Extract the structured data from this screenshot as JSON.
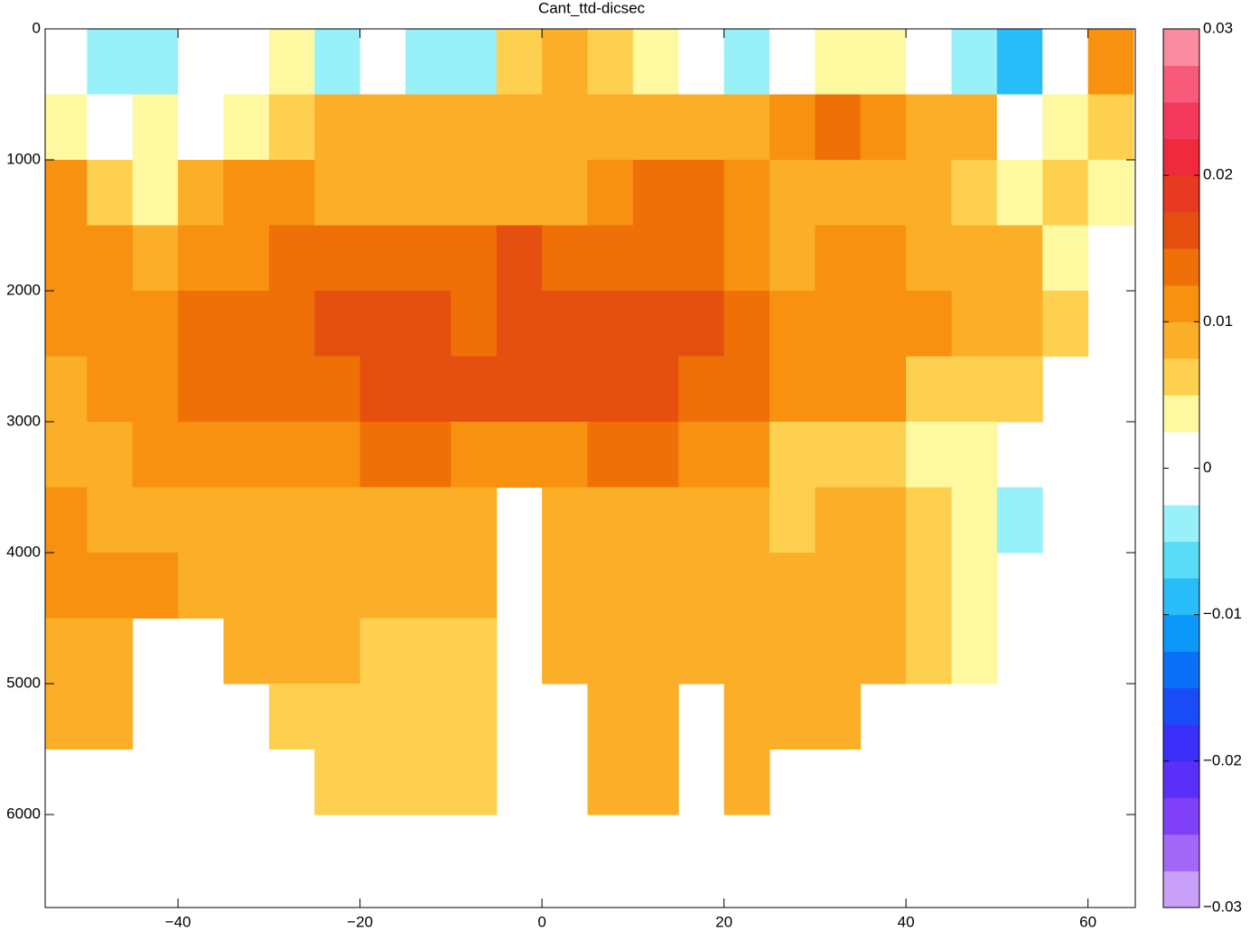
{
  "chart_data": {
    "type": "heatmap",
    "title": "Cant_ttd-dicsec",
    "x_edges": [
      -55,
      -50,
      -45,
      -40,
      -35,
      -30,
      -25,
      -20,
      -15,
      -10,
      -5,
      0,
      5,
      10,
      15,
      20,
      25,
      30,
      35,
      40,
      45,
      50,
      55,
      60,
      65
    ],
    "y_edges": [
      0,
      500,
      1000,
      1500,
      2000,
      2500,
      3000,
      3500,
      4000,
      4500,
      5000,
      5500,
      6000,
      6500
    ],
    "values": [
      [
        0.001,
        -0.004,
        -0.004,
        0.001,
        0.001,
        0.004,
        -0.004,
        0.001,
        -0.004,
        -0.004,
        0.006,
        0.0085,
        0.006,
        0.004,
        0.001,
        -0.004,
        0.001,
        0.004,
        0.004,
        0.001,
        -0.004,
        -0.009,
        0.001,
        0.011
      ],
      [
        0.004,
        0.001,
        0.004,
        0.001,
        0.004,
        0.006,
        0.0085,
        0.0085,
        0.0085,
        0.0085,
        0.0085,
        0.0085,
        0.0085,
        0.0085,
        0.0085,
        0.0085,
        0.011,
        0.0135,
        0.011,
        0.0085,
        0.0085,
        0.001,
        0.004,
        0.006
      ],
      [
        0.011,
        0.006,
        0.004,
        0.0085,
        0.011,
        0.011,
        0.0085,
        0.0085,
        0.0085,
        0.0085,
        0.0085,
        0.0085,
        0.011,
        0.0135,
        0.0135,
        0.011,
        0.0085,
        0.0085,
        0.0085,
        0.0085,
        0.006,
        0.004,
        0.006,
        0.004
      ],
      [
        0.011,
        0.011,
        0.0085,
        0.011,
        0.011,
        0.0135,
        0.0135,
        0.0135,
        0.0135,
        0.0135,
        0.016,
        0.0135,
        0.0135,
        0.0135,
        0.0135,
        0.011,
        0.0085,
        0.011,
        0.011,
        0.0085,
        0.0085,
        0.0085,
        0.004,
        null
      ],
      [
        0.011,
        0.011,
        0.011,
        0.0135,
        0.0135,
        0.0135,
        0.016,
        0.016,
        0.016,
        0.0135,
        0.016,
        0.016,
        0.016,
        0.016,
        0.016,
        0.0135,
        0.011,
        0.011,
        0.011,
        0.011,
        0.0085,
        0.0085,
        0.006,
        null
      ],
      [
        0.0085,
        0.011,
        0.011,
        0.0135,
        0.0135,
        0.0135,
        0.0135,
        0.016,
        0.016,
        0.016,
        0.016,
        0.016,
        0.016,
        0.016,
        0.0135,
        0.0135,
        0.011,
        0.011,
        0.011,
        0.006,
        0.006,
        0.006,
        null,
        null
      ],
      [
        0.0085,
        0.0085,
        0.011,
        0.011,
        0.011,
        0.011,
        0.011,
        0.0135,
        0.0135,
        0.011,
        0.011,
        0.011,
        0.0135,
        0.0135,
        0.011,
        0.011,
        0.006,
        0.006,
        0.006,
        0.004,
        0.004,
        null,
        null,
        null
      ],
      [
        0.011,
        0.0085,
        0.0085,
        0.0085,
        0.0085,
        0.0085,
        0.0085,
        0.0085,
        0.0085,
        0.0085,
        null,
        0.0085,
        0.0085,
        0.0085,
        0.0085,
        0.0085,
        0.006,
        0.0085,
        0.0085,
        0.006,
        0.004,
        -0.004,
        null,
        null
      ],
      [
        0.011,
        0.011,
        0.011,
        0.0085,
        0.0085,
        0.0085,
        0.0085,
        0.0085,
        0.0085,
        0.0085,
        null,
        0.0085,
        0.0085,
        0.0085,
        0.0085,
        0.0085,
        0.0085,
        0.0085,
        0.0085,
        0.006,
        0.004,
        null,
        null,
        null
      ],
      [
        0.0085,
        0.0085,
        null,
        null,
        0.0085,
        0.0085,
        0.0085,
        0.006,
        0.006,
        0.006,
        null,
        0.0085,
        0.0085,
        0.0085,
        0.0085,
        0.0085,
        0.0085,
        0.0085,
        0.0085,
        0.006,
        0.004,
        null,
        null,
        null
      ],
      [
        0.0085,
        0.0085,
        null,
        null,
        null,
        0.006,
        0.006,
        0.006,
        0.006,
        0.006,
        null,
        null,
        0.0085,
        0.0085,
        null,
        0.0085,
        0.0085,
        0.0085,
        null,
        null,
        null,
        null,
        null,
        null
      ],
      [
        null,
        null,
        null,
        null,
        null,
        null,
        0.006,
        0.006,
        0.006,
        0.006,
        null,
        null,
        0.0085,
        0.0085,
        null,
        0.0085,
        null,
        null,
        null,
        null,
        null,
        null,
        null,
        null
      ],
      [
        null,
        null,
        null,
        null,
        null,
        null,
        null,
        null,
        null,
        null,
        null,
        null,
        null,
        null,
        null,
        null,
        null,
        null,
        null,
        null,
        null,
        null,
        null,
        null
      ]
    ],
    "xlim": [
      -54.6,
      65.2
    ],
    "ylim": [
      0,
      6710
    ],
    "y_reversed": true,
    "xticks": [
      {
        "value": -40,
        "label": "−40"
      },
      {
        "value": -20,
        "label": "−20"
      },
      0,
      20,
      40,
      60
    ],
    "yticks": [
      0,
      1000,
      2000,
      3000,
      4000,
      5000,
      6000
    ],
    "clim": [
      -0.03,
      0.03
    ],
    "colorbar_ticks": [
      {
        "value": -0.03,
        "label": "−0.03"
      },
      {
        "value": -0.02,
        "label": "−0.02"
      },
      {
        "value": -0.01,
        "label": "−0.01"
      },
      0,
      0.01,
      0.02,
      0.03
    ],
    "colormap": [
      "#c8a0f8",
      "#a468f8",
      "#8040f8",
      "#5a30f8",
      "#3a2ef8",
      "#1a4cf8",
      "#0a70f8",
      "#0c98f8",
      "#28bcf8",
      "#58dcf8",
      "#98f0f8",
      "#ffffff",
      "#ffffff",
      "#fef8a0",
      "#fed050",
      "#fbae28",
      "#f89010",
      "#f07008",
      "#e55010",
      "#e83a20",
      "#ee2a3c",
      "#f43a5c",
      "#f85a7a",
      "#fa8aa0"
    ]
  }
}
